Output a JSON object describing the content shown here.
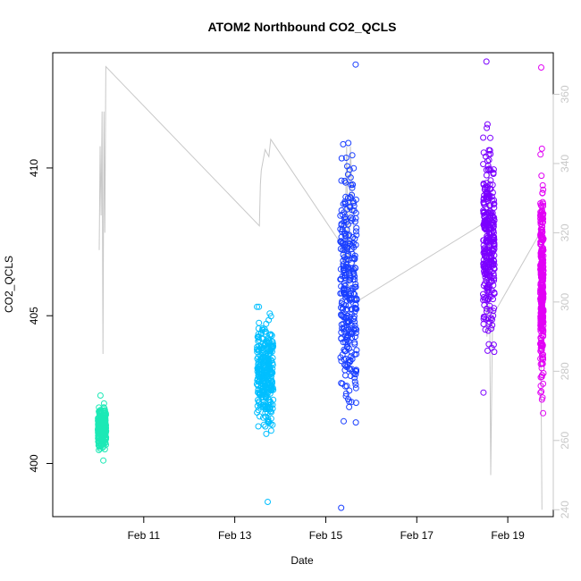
{
  "chart_data": {
    "type": "scatter",
    "title": "ATOM2 Northbound CO2_QCLS",
    "xlabel": "Date",
    "ylabel": "CO2_QCLS",
    "x_axis": {
      "unit": "days",
      "range": [
        "2016-02-09",
        "2016-02-20"
      ],
      "ticks": [
        {
          "value": "2016-02-11",
          "label": "Feb 11"
        },
        {
          "value": "2016-02-13",
          "label": "Feb 13"
        },
        {
          "value": "2016-02-15",
          "label": "Feb 15"
        },
        {
          "value": "2016-02-17",
          "label": "Feb 17"
        },
        {
          "value": "2016-02-19",
          "label": "Feb 19"
        }
      ]
    },
    "y_axis_left": {
      "range": [
        398.2,
        413.9
      ],
      "ticks": [
        {
          "value": 400,
          "label": "400"
        },
        {
          "value": 405,
          "label": "405"
        },
        {
          "value": 410,
          "label": "410"
        }
      ]
    },
    "y_axis_right": {
      "color": "#c8c8c8",
      "range": [
        238,
        372
      ],
      "ticks": [
        {
          "value": 240,
          "label": "240"
        },
        {
          "value": 260,
          "label": "260"
        },
        {
          "value": 280,
          "label": "280"
        },
        {
          "value": 300,
          "label": "300"
        },
        {
          "value": 320,
          "label": "320"
        },
        {
          "value": 340,
          "label": "340"
        },
        {
          "value": 360,
          "label": "360"
        }
      ]
    },
    "grid": false,
    "legend": "none",
    "series": [
      {
        "color": "#1de9b6",
        "x_center": "2016-02-10T02:00",
        "x_spread_days": 0.18,
        "y_min": 400.1,
        "y_max": 402.3,
        "y_center": 401.2
      },
      {
        "color": "#00bfff",
        "x_center": "2016-02-13T16:00",
        "x_spread_days": 0.36,
        "y_min": 398.7,
        "y_max": 405.3,
        "y_center": 403.0
      },
      {
        "color": "#1a3fff",
        "x_center": "2016-02-15T12:00",
        "x_spread_days": 0.36,
        "y_min": 398.5,
        "y_max": 413.5,
        "y_center": 406.0
      },
      {
        "color": "#7b00ff",
        "x_center": "2016-02-18T14:00",
        "x_spread_days": 0.25,
        "y_min": 402.4,
        "y_max": 413.6,
        "y_center": 407.5
      },
      {
        "color": "#e100f5",
        "x_center": "2016-02-19T18:00",
        "x_spread_days": 0.07,
        "y_min": 401.7,
        "y_max": 413.4,
        "y_center": 406.0
      }
    ],
    "secondary_line": {
      "axis": "right",
      "color": "#c8c8c8",
      "points": [
        {
          "x": "2016-02-10T00:30",
          "y": 315
        },
        {
          "x": "2016-02-10T01:00",
          "y": 345
        },
        {
          "x": "2016-02-10T01:30",
          "y": 325
        },
        {
          "x": "2016-02-10T02:00",
          "y": 355
        },
        {
          "x": "2016-02-10T02:30",
          "y": 285
        },
        {
          "x": "2016-02-10T03:00",
          "y": 355
        },
        {
          "x": "2016-02-10T03:30",
          "y": 320
        },
        {
          "x": "2016-02-10T04:00",
          "y": 368
        },
        {
          "x": "2016-02-13T13:00",
          "y": 322
        },
        {
          "x": "2016-02-13T13:30",
          "y": 334
        },
        {
          "x": "2016-02-13T14:00",
          "y": 338
        },
        {
          "x": "2016-02-13T16:00",
          "y": 344
        },
        {
          "x": "2016-02-13T18:00",
          "y": 342
        },
        {
          "x": "2016-02-13T19:00",
          "y": 347
        },
        {
          "x": "2016-02-15T09:00",
          "y": 316
        },
        {
          "x": "2016-02-15T10:00",
          "y": 310
        },
        {
          "x": "2016-02-15T11:00",
          "y": 345
        },
        {
          "x": "2016-02-15T12:00",
          "y": 300
        },
        {
          "x": "2016-02-15T13:00",
          "y": 345
        },
        {
          "x": "2016-02-15T14:00",
          "y": 330
        },
        {
          "x": "2016-02-15T16:00",
          "y": 300
        },
        {
          "x": "2016-02-18T12:00",
          "y": 323
        },
        {
          "x": "2016-02-18T13:00",
          "y": 290
        },
        {
          "x": "2016-02-18T14:00",
          "y": 340
        },
        {
          "x": "2016-02-18T15:00",
          "y": 250
        },
        {
          "x": "2016-02-18T16:00",
          "y": 296
        },
        {
          "x": "2016-02-19T17:00",
          "y": 320
        },
        {
          "x": "2016-02-19T18:00",
          "y": 240
        }
      ]
    }
  }
}
